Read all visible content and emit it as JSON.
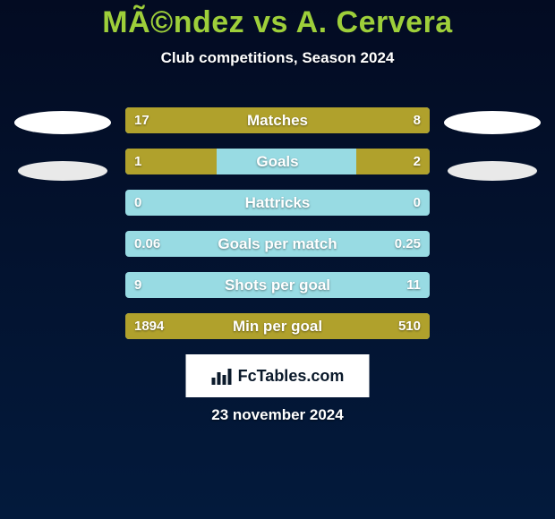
{
  "colors": {
    "bg_top": "#030b22",
    "bg_bottom": "#031a3c",
    "title": "#9ecf3a",
    "subtitle": "#ffffff",
    "track": "#98dbe3",
    "bar_left": "#b0a12c",
    "bar_right": "#b0a12c",
    "row_label": "#ffffff",
    "val_text": "#ffffff",
    "logo_bg": "#ffffff",
    "logo_text": "#0b1a2b",
    "ellipse1": "#ffffff",
    "ellipse2": "#e9e9e9"
  },
  "sizes": {
    "title_fontsize": 34,
    "subtitle_fontsize": 17,
    "row_label_fontsize": 17,
    "val_fontsize": 15,
    "logo_fontsize": 18,
    "date_fontsize": 17,
    "ellipse1_w": 108,
    "ellipse1_h": 26,
    "ellipse2_w": 100,
    "ellipse2_h": 22
  },
  "header": {
    "title": "MÃ©ndez vs A. Cervera",
    "subtitle": "Club competitions, Season 2024"
  },
  "stats": [
    {
      "label": "Matches",
      "left_val": "17",
      "right_val": "8",
      "left_pct": 68,
      "right_pct": 32
    },
    {
      "label": "Goals",
      "left_val": "1",
      "right_val": "2",
      "left_pct": 30,
      "right_pct": 24
    },
    {
      "label": "Hattricks",
      "left_val": "0",
      "right_val": "0",
      "left_pct": 0,
      "right_pct": 0
    },
    {
      "label": "Goals per match",
      "left_val": "0.06",
      "right_val": "0.25",
      "left_pct": 0,
      "right_pct": 0
    },
    {
      "label": "Shots per goal",
      "left_val": "9",
      "right_val": "11",
      "left_pct": 0,
      "right_pct": 0
    },
    {
      "label": "Min per goal",
      "left_val": "1894",
      "right_val": "510",
      "left_pct": 78,
      "right_pct": 22
    }
  ],
  "logo": {
    "text": "FcTables.com"
  },
  "date": "23 november 2024"
}
